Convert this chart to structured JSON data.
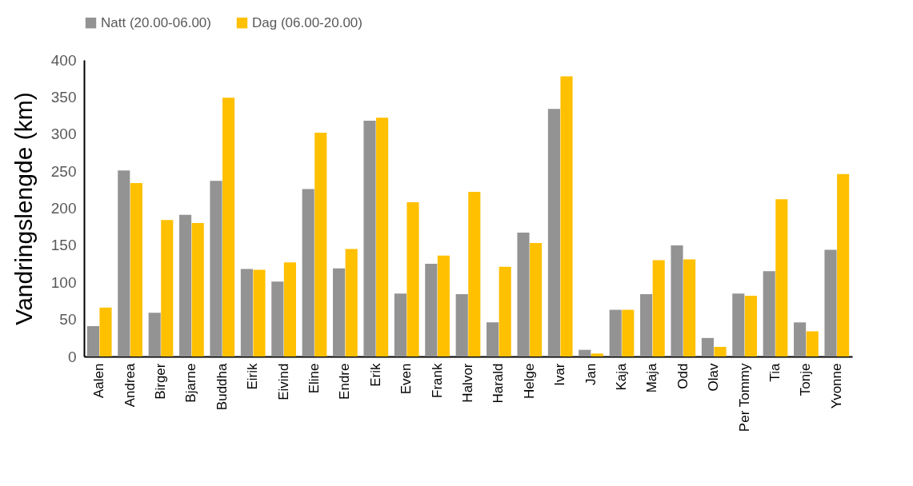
{
  "chart_data": {
    "type": "bar",
    "ylabel": "Vandringslengde (km)",
    "categories": [
      "Aalen",
      "Andrea",
      "Birger",
      "Bjarne",
      "Buddha",
      "Eirik",
      "Eivind",
      "Eline",
      "Endre",
      "Erik",
      "Even",
      "Frank",
      "Halvor",
      "Harald",
      "Helge",
      "Ivar",
      "Jan",
      "Kaja",
      "Maja",
      "Odd",
      "Olav",
      "Per Tommy",
      "Tia",
      "Tonje",
      "Yvonne"
    ],
    "series": [
      {
        "name": "Natt (20.00-06.00)",
        "color": "#939393",
        "values": [
          41,
          251,
          59,
          191,
          237,
          118,
          101,
          226,
          119,
          318,
          85,
          125,
          84,
          46,
          167,
          334,
          9,
          63,
          84,
          150,
          25,
          85,
          115,
          46,
          144
        ]
      },
      {
        "name": "Dag (06.00-20.00)",
        "color": "#ffc000",
        "values": [
          66,
          234,
          184,
          180,
          349,
          117,
          127,
          302,
          145,
          322,
          208,
          136,
          222,
          121,
          153,
          378,
          4,
          63,
          130,
          131,
          13,
          82,
          212,
          34,
          246
        ]
      }
    ],
    "ylim": [
      0,
      400
    ],
    "yticks": [
      0,
      50,
      100,
      150,
      200,
      250,
      300,
      350,
      400
    ],
    "grid": false,
    "legend": "top"
  }
}
